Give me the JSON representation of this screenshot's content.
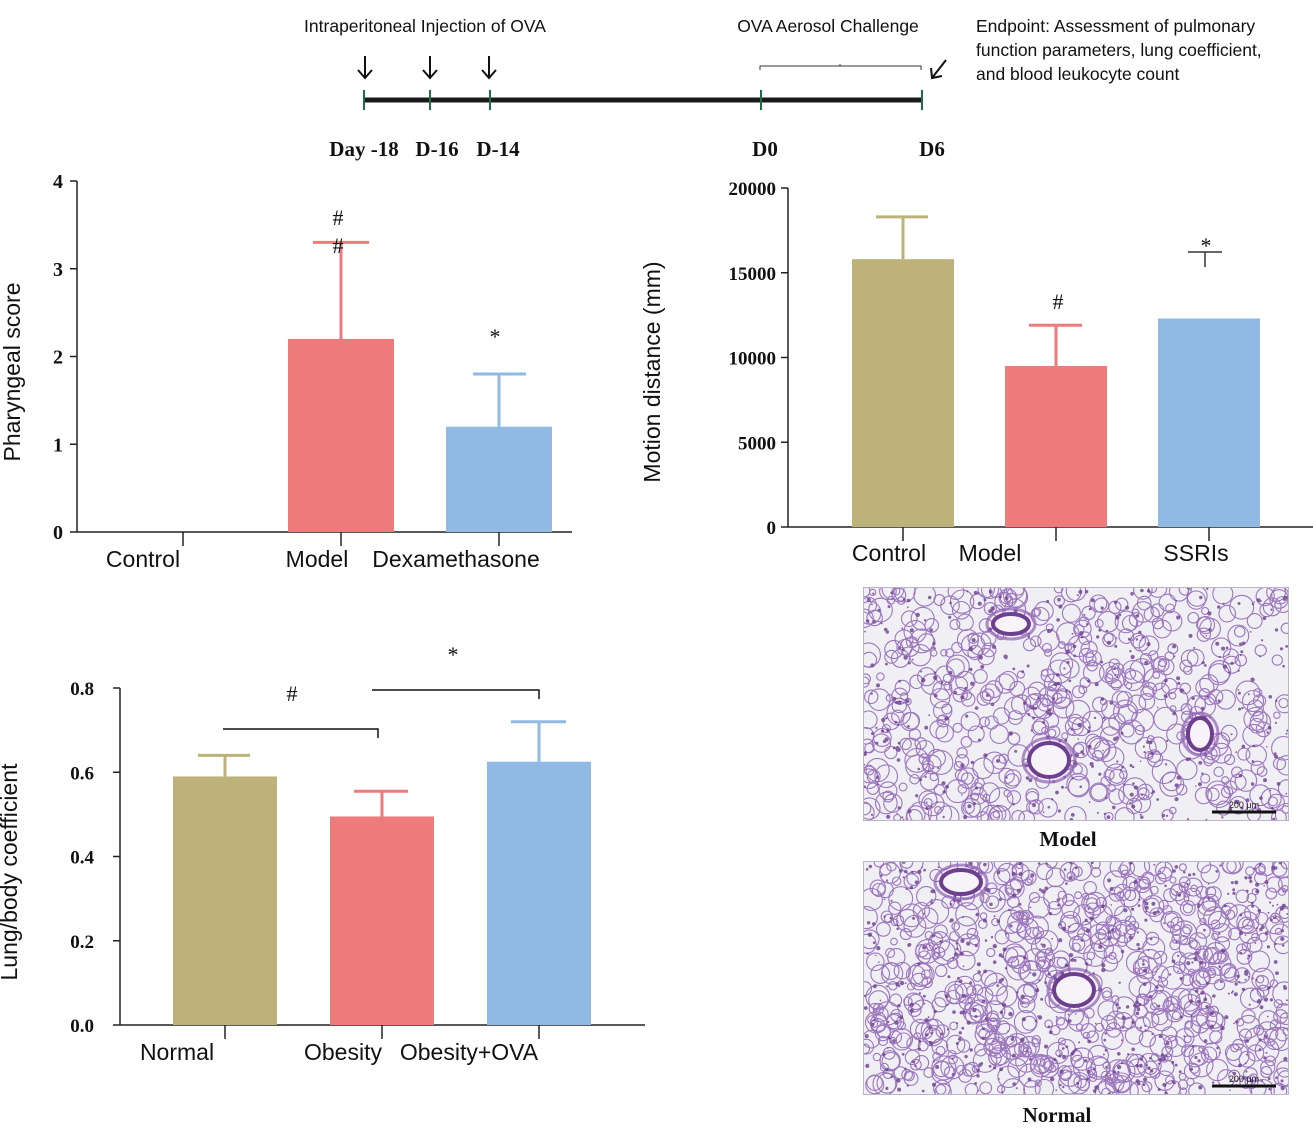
{
  "colors": {
    "olive": "#bcb27a",
    "red": "#ee7b7c",
    "blue": "#90b9e3",
    "axis": "#222222",
    "timeline": "#1a1a1a",
    "tick": "#1f6b46",
    "hist_bg": "#f0eff4",
    "hist_tissue": "#8e62b4",
    "hist_dark": "#6e3f8f"
  },
  "timeline": {
    "injection_label": "Intraperitoneal Injection of OVA",
    "challenge_label": "OVA Aerosol Challenge",
    "endpoint_lines": [
      "Endpoint: Assessment of pulmonary",
      "function parameters, lung coefficient,",
      "and blood leukocyte count"
    ],
    "days": [
      "Day -18",
      "D-16",
      "D-14",
      "D0",
      "D6"
    ]
  },
  "chart_data": [
    {
      "type": "bar",
      "id": "pharyngeal",
      "title": "",
      "ylabel": "Pharyngeal score",
      "xlabel": "",
      "categories": [
        "Control",
        "Model",
        "Dexamethasone"
      ],
      "values": [
        0,
        2.2,
        1.2
      ],
      "errors": [
        0,
        1.1,
        0.6
      ],
      "colors": [
        "#bcb27a",
        "#ee7b7c",
        "#90b9e3"
      ],
      "annotations": [
        "",
        "#\n#",
        "*"
      ],
      "ylim": [
        0,
        4
      ],
      "yticks": [
        0,
        1,
        2,
        3,
        4
      ],
      "grid": false
    },
    {
      "type": "bar",
      "id": "motion",
      "title": "",
      "ylabel": "Motion distance (mm)",
      "xlabel": "",
      "categories": [
        "Control",
        "Model",
        "SSRIs"
      ],
      "values": [
        15800,
        9500,
        12300
      ],
      "errors": [
        2500,
        2400,
        3900
      ],
      "colors": [
        "#bcb27a",
        "#ee7b7c",
        "#90b9e3"
      ],
      "annotations": [
        "",
        "#",
        "*"
      ],
      "ylim": [
        0,
        20000
      ],
      "yticks": [
        0,
        5000,
        10000,
        15000,
        20000
      ],
      "grid": false
    },
    {
      "type": "bar",
      "id": "lungbody",
      "title": "",
      "ylabel": "Lung/body coefficient",
      "xlabel": "",
      "categories": [
        "Normal",
        "Obesity",
        "Obesity+OVA"
      ],
      "values": [
        0.59,
        0.495,
        0.625
      ],
      "errors": [
        0.05,
        0.06,
        0.095
      ],
      "colors": [
        "#bcb27a",
        "#ee7b7c",
        "#90b9e3"
      ],
      "ytick_labels": [
        "0.0",
        "0.2",
        "0.4",
        "0.6",
        "0.8"
      ],
      "ylim": [
        0,
        0.8
      ],
      "yticks": [
        0,
        0.2,
        0.4,
        0.6,
        0.8
      ],
      "brackets": [
        {
          "from": 0,
          "to": 1,
          "label": "#"
        },
        {
          "from": 1,
          "to": 2,
          "label": "*"
        }
      ],
      "grid": false
    }
  ],
  "histology": {
    "model_caption": "Model",
    "normal_caption": "Normal",
    "scale_label": "200 μm"
  }
}
